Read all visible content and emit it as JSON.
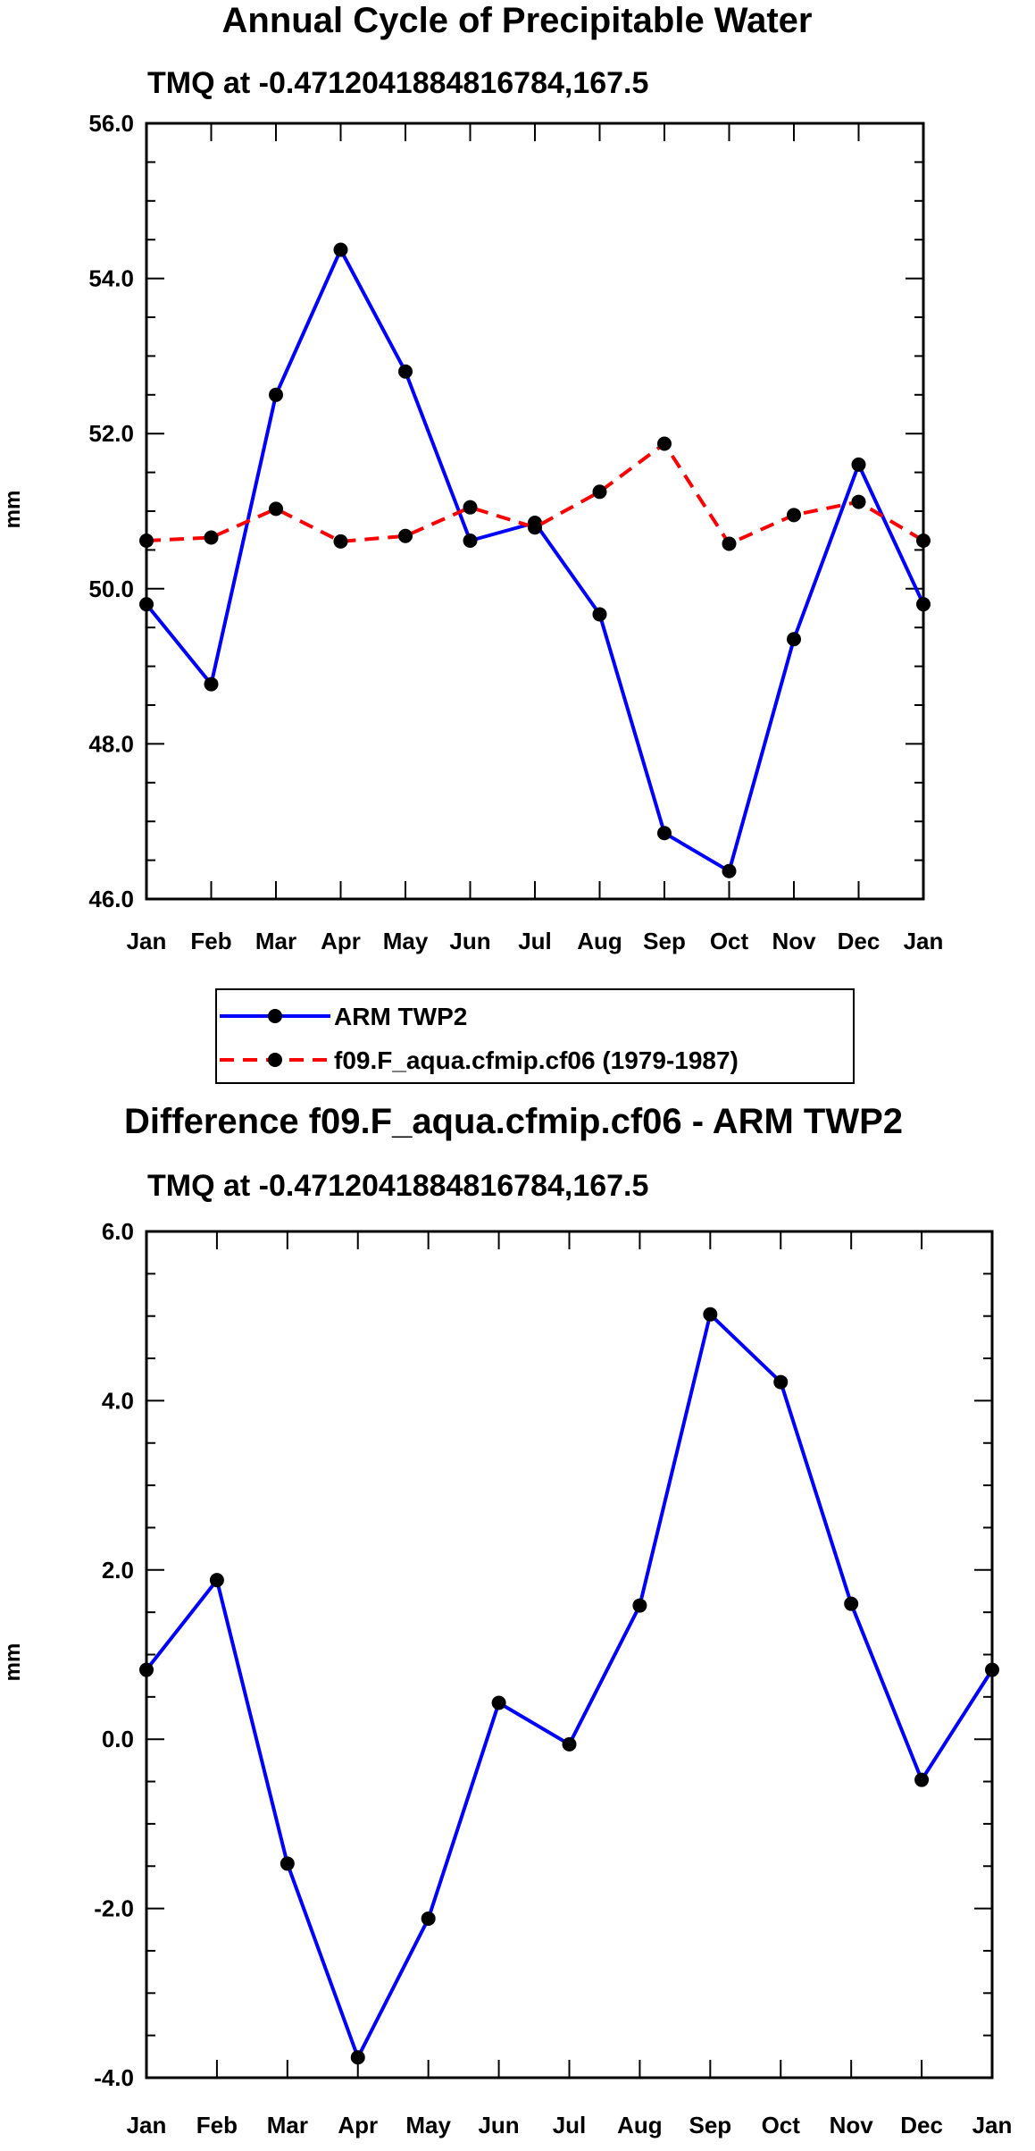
{
  "colors": {
    "obs_line": "#0000ff",
    "model_line": "#ff0000",
    "marker": "#000000",
    "axis": "#000000"
  },
  "chart_data": [
    {
      "id": "top",
      "type": "line",
      "title": "Annual Cycle of Precipitable Water",
      "subtitle": "TMQ at -0.4712041884816784,167.5",
      "ylabel": "mm",
      "xlabel": "",
      "ylim": [
        46.0,
        56.0
      ],
      "yticks": [
        46.0,
        48.0,
        50.0,
        52.0,
        54.0,
        56.0
      ],
      "ytick_labels": [
        "46.0",
        "48.0",
        "50.0",
        "52.0",
        "54.0",
        "56.0"
      ],
      "categories": [
        "Jan",
        "Feb",
        "Mar",
        "Apr",
        "May",
        "Jun",
        "Jul",
        "Aug",
        "Sep",
        "Oct",
        "Nov",
        "Dec",
        "Jan"
      ],
      "series": [
        {
          "name": "ARM TWP2",
          "style": "solid",
          "color": "#0000ff",
          "values": [
            49.8,
            48.77,
            52.5,
            54.37,
            52.8,
            50.62,
            50.85,
            49.67,
            46.85,
            46.36,
            49.35,
            51.6,
            49.8
          ]
        },
        {
          "name": "f09.F_aqua.cfmip.cf06 (1979-1987)",
          "style": "dashed",
          "color": "#ff0000",
          "values": [
            50.62,
            50.66,
            51.03,
            50.61,
            50.68,
            51.05,
            50.79,
            51.25,
            51.87,
            50.58,
            50.95,
            51.12,
            50.62
          ]
        }
      ]
    },
    {
      "id": "bottom",
      "type": "line",
      "title": "Difference f09.F_aqua.cfmip.cf06 - ARM TWP2",
      "subtitle": "TMQ at -0.4712041884816784,167.5",
      "ylabel": "mm",
      "xlabel": "",
      "ylim": [
        -4.0,
        6.0
      ],
      "yticks": [
        -4.0,
        -2.0,
        0.0,
        2.0,
        4.0,
        6.0
      ],
      "ytick_labels": [
        "-4.0",
        "-2.0",
        "0.0",
        "2.0",
        "4.0",
        "6.0"
      ],
      "categories": [
        "Jan",
        "Feb",
        "Mar",
        "Apr",
        "May",
        "Jun",
        "Jul",
        "Aug",
        "Sep",
        "Oct",
        "Nov",
        "Dec",
        "Jan"
      ],
      "series": [
        {
          "name": "Difference",
          "style": "solid",
          "color": "#0000ff",
          "values": [
            0.82,
            1.88,
            -1.47,
            -3.76,
            -2.12,
            0.43,
            -0.06,
            1.58,
            5.02,
            4.22,
            1.6,
            -0.48,
            0.82
          ]
        }
      ]
    }
  ]
}
